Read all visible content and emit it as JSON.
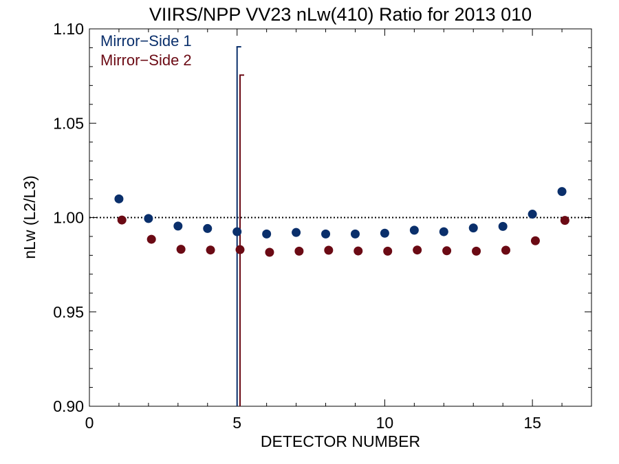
{
  "chart_data": {
    "type": "scatter",
    "title": "VIIRS/NPP VV23 nLw(410) Ratio for 2013 010",
    "xlabel": "DETECTOR NUMBER",
    "ylabel": "nLw (L2/L3)",
    "xlim": [
      0,
      17
    ],
    "ylim": [
      0.9,
      1.1
    ],
    "xticks": [
      0,
      5,
      10,
      15
    ],
    "xtick_labels": [
      "0",
      "5",
      "10",
      "15"
    ],
    "yticks": [
      0.9,
      0.95,
      1.0,
      1.05,
      1.1
    ],
    "ytick_labels": [
      "0.90",
      "0.95",
      "1.00",
      "1.05",
      "1.10"
    ],
    "reference_line": 1.0,
    "grid": false,
    "legend_position": "top-left",
    "series": [
      {
        "name": "Mirror−Side 1",
        "color": "#0a2f6b",
        "x": [
          1,
          2,
          3,
          4,
          5,
          6,
          7,
          8,
          9,
          10,
          11,
          12,
          13,
          14,
          15,
          16
        ],
        "y": [
          1.0099,
          0.9995,
          0.9955,
          0.9942,
          0.9925,
          0.9913,
          0.9921,
          0.9913,
          0.9913,
          0.9917,
          0.9933,
          0.9925,
          0.9945,
          0.9953,
          1.0018,
          1.0138
        ],
        "error_bars": [
          {
            "x": 5,
            "low": 0.9,
            "high": 1.0905
          }
        ]
      },
      {
        "name": "Mirror−Side 2",
        "color": "#6b0a14",
        "x": [
          1.1,
          2.1,
          3.1,
          4.1,
          5.1,
          6.1,
          7.1,
          8.1,
          9.1,
          10.1,
          11.1,
          12.1,
          13.1,
          14.1,
          15.1,
          16.1
        ],
        "y": [
          0.9987,
          0.9885,
          0.9832,
          0.9828,
          0.983,
          0.9816,
          0.9822,
          0.9827,
          0.9823,
          0.9822,
          0.9828,
          0.9824,
          0.9822,
          0.9827,
          0.9877,
          0.9985
        ],
        "error_bars": [
          {
            "x": 5.1,
            "low": 0.9,
            "high": 1.0755
          }
        ]
      }
    ]
  }
}
